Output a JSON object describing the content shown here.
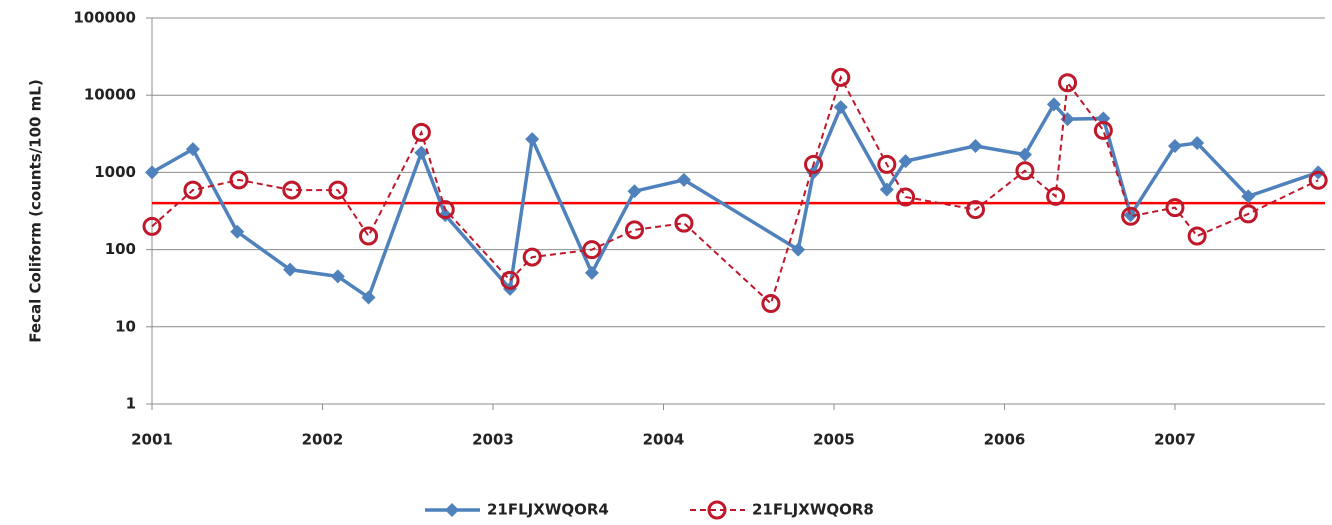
{
  "chart_data": {
    "type": "line",
    "y_label": "Fecal Coliform (counts/100 mL)",
    "log_y": true,
    "grid": true,
    "legend": "bottom",
    "xlim": [
      2001,
      2007.88
    ],
    "xticks": [
      2001,
      2002,
      2003,
      2004,
      2005,
      2006,
      2007
    ],
    "ylim": [
      1,
      100000
    ],
    "yticks": [
      1,
      10,
      100,
      1000,
      10000,
      100000
    ],
    "reference_line": {
      "value": 400,
      "color": "#ff0000"
    },
    "series": [
      {
        "name": "21FLJXWQOR4",
        "color": "#4f81bd",
        "marker": "diamond",
        "dashed": false,
        "x": [
          2001.0,
          2001.24,
          2001.5,
          2001.81,
          2002.09,
          2002.27,
          2002.58,
          2002.72,
          2003.1,
          2003.23,
          2003.58,
          2003.83,
          2004.12,
          2004.79,
          2004.88,
          2005.04,
          2005.31,
          2005.42,
          2005.83,
          2006.12,
          2006.29,
          2006.37,
          2006.58,
          2006.74,
          2007.0,
          2007.13,
          2007.43,
          2007.84
        ],
        "values": [
          1000,
          2000,
          170,
          55,
          45,
          24,
          1800,
          280,
          31,
          2700,
          50,
          570,
          800,
          100,
          1000,
          7000,
          600,
          1400,
          2200,
          1700,
          7600,
          4900,
          5000,
          280,
          2200,
          2400,
          490,
          1000
        ]
      },
      {
        "name": "21FLJXWQOR8",
        "color": "#c0182b",
        "marker": "circle",
        "dashed": true,
        "x": [
          2001.0,
          2001.24,
          2001.51,
          2001.82,
          2002.09,
          2002.27,
          2002.58,
          2002.72,
          2003.1,
          2003.23,
          2003.58,
          2003.83,
          2004.12,
          2004.63,
          2004.88,
          2005.04,
          2005.31,
          2005.42,
          2005.83,
          2006.12,
          2006.3,
          2006.37,
          2006.58,
          2006.74,
          2007.0,
          2007.13,
          2007.43,
          2007.84
        ],
        "values": [
          200,
          590,
          800,
          590,
          590,
          150,
          3300,
          330,
          40,
          80,
          100,
          180,
          220,
          20,
          1270,
          17000,
          1270,
          480,
          330,
          1050,
          490,
          14500,
          3500,
          270,
          350,
          150,
          290,
          790
        ]
      }
    ]
  }
}
